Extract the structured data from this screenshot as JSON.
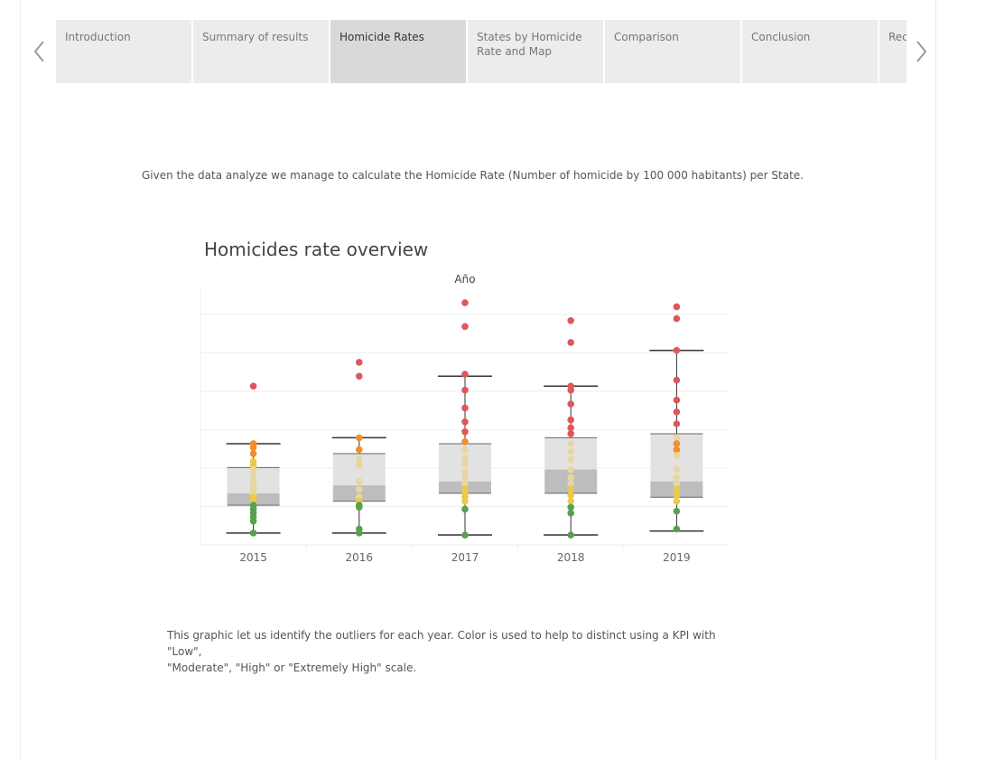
{
  "nav": {
    "tabs": [
      {
        "label": "Introduction",
        "active": false
      },
      {
        "label": "Summary of results",
        "active": false
      },
      {
        "label": "Homicide Rates",
        "active": true
      },
      {
        "label": "States by Homicide Rate and Map",
        "active": false
      },
      {
        "label": "Comparison",
        "active": false
      },
      {
        "label": "Conclusion",
        "active": false
      },
      {
        "label": "Rec",
        "active": false
      }
    ]
  },
  "intro_text": "Given the data analyze we manage to calculate the Homicide Rate (Number of homicide by 100 000 habitants) per State.",
  "footnote_line1": "This graphic let us identify the outliers for each year. Color is used to help to distinct using a KPI with \"Low\",",
  "footnote_line2": "\"Moderate\", \"High\" or \"Extremely High\" scale.",
  "colors": {
    "low": "#59a14f",
    "moderate": "#edc948",
    "moderate_light": "#e8d6a0",
    "high": "#f28e2b",
    "extremely_high": "#e15759",
    "box_upper": "#e2e2e2",
    "box_lower": "#bdbdbd",
    "whisker": "#333333"
  },
  "chart_data": {
    "type": "scatter",
    "title": "Homicides rate overview",
    "xlabel": "Año",
    "ylabel": "",
    "ylim": [
      0,
      61
    ],
    "categories": [
      "2015",
      "2016",
      "2017",
      "2018",
      "2019"
    ],
    "boxes": [
      {
        "year": "2015",
        "whisker_low": 3,
        "q1": 10,
        "median": 13,
        "q3": 19.5,
        "whisker_high": 25.5
      },
      {
        "year": "2016",
        "whisker_low": 3,
        "q1": 11,
        "median": 15,
        "q3": 23,
        "whisker_high": 27
      },
      {
        "year": "2017",
        "whisker_low": 2.5,
        "q1": 13,
        "median": 16,
        "q3": 25.5,
        "whisker_high": 42.5
      },
      {
        "year": "2018",
        "whisker_low": 2.5,
        "q1": 13,
        "median": 19,
        "q3": 27,
        "whisker_high": 40
      },
      {
        "year": "2019",
        "whisker_low": 3.5,
        "q1": 12,
        "median": 16,
        "q3": 28,
        "whisker_high": 49
      }
    ],
    "points": [
      {
        "year": "2015",
        "values": [
          40,
          25.5,
          24.5,
          23,
          21,
          20,
          19,
          17.5,
          16,
          15,
          14,
          13,
          12,
          11,
          10,
          9,
          8,
          7,
          6,
          3
        ],
        "kpi": [
          "extremely_high",
          "high",
          "high",
          "high",
          "moderate",
          "moderate",
          "moderate_light",
          "moderate_light",
          "moderate_light",
          "moderate_light",
          "moderate_light",
          "moderate_light",
          "moderate",
          "moderate",
          "low",
          "low",
          "low",
          "low",
          "low",
          "low"
        ]
      },
      {
        "year": "2016",
        "values": [
          46,
          42.5,
          27,
          24,
          21.5,
          20,
          16,
          14,
          12,
          11,
          10,
          9.5,
          4,
          3
        ],
        "kpi": [
          "extremely_high",
          "extremely_high",
          "high",
          "high",
          "moderate_light",
          "moderate_light",
          "moderate_light",
          "moderate_light",
          "moderate_light",
          "moderate",
          "low",
          "low",
          "low",
          "low"
        ]
      },
      {
        "year": "2017",
        "values": [
          61,
          55,
          43,
          39,
          34.5,
          31,
          28.5,
          26,
          24,
          22,
          20.5,
          18.5,
          17,
          15.5,
          14,
          13,
          12,
          11,
          9,
          2.5
        ],
        "kpi": [
          "extremely_high",
          "extremely_high",
          "extremely_high",
          "extremely_high",
          "extremely_high",
          "extremely_high",
          "extremely_high",
          "high",
          "moderate_light",
          "moderate_light",
          "moderate_light",
          "moderate_light",
          "moderate_light",
          "moderate_light",
          "moderate",
          "moderate",
          "moderate",
          "moderate",
          "low",
          "low"
        ]
      },
      {
        "year": "2018",
        "values": [
          56.5,
          51,
          40,
          39,
          35.5,
          31.5,
          29.5,
          28,
          25.5,
          23.5,
          21.5,
          19,
          17,
          15.5,
          14,
          12.5,
          11,
          9.5,
          8,
          2.5
        ],
        "kpi": [
          "extremely_high",
          "extremely_high",
          "extremely_high",
          "extremely_high",
          "extremely_high",
          "extremely_high",
          "extremely_high",
          "extremely_high",
          "moderate_light",
          "moderate_light",
          "moderate_light",
          "moderate_light",
          "moderate_light",
          "moderate_light",
          "moderate",
          "moderate",
          "moderate",
          "low",
          "low",
          "low"
        ]
      },
      {
        "year": "2019",
        "values": [
          60,
          57,
          49,
          41.5,
          36.5,
          33.5,
          30.5,
          27,
          25.5,
          24,
          22.5,
          19,
          17,
          15.5,
          14,
          12.5,
          11,
          8.5,
          4
        ],
        "kpi": [
          "extremely_high",
          "extremely_high",
          "extremely_high",
          "extremely_high",
          "extremely_high",
          "extremely_high",
          "extremely_high",
          "moderate_light",
          "high",
          "high",
          "moderate_light",
          "moderate_light",
          "moderate_light",
          "moderate_light",
          "moderate",
          "moderate",
          "moderate",
          "low",
          "low"
        ]
      }
    ],
    "grid": true
  }
}
